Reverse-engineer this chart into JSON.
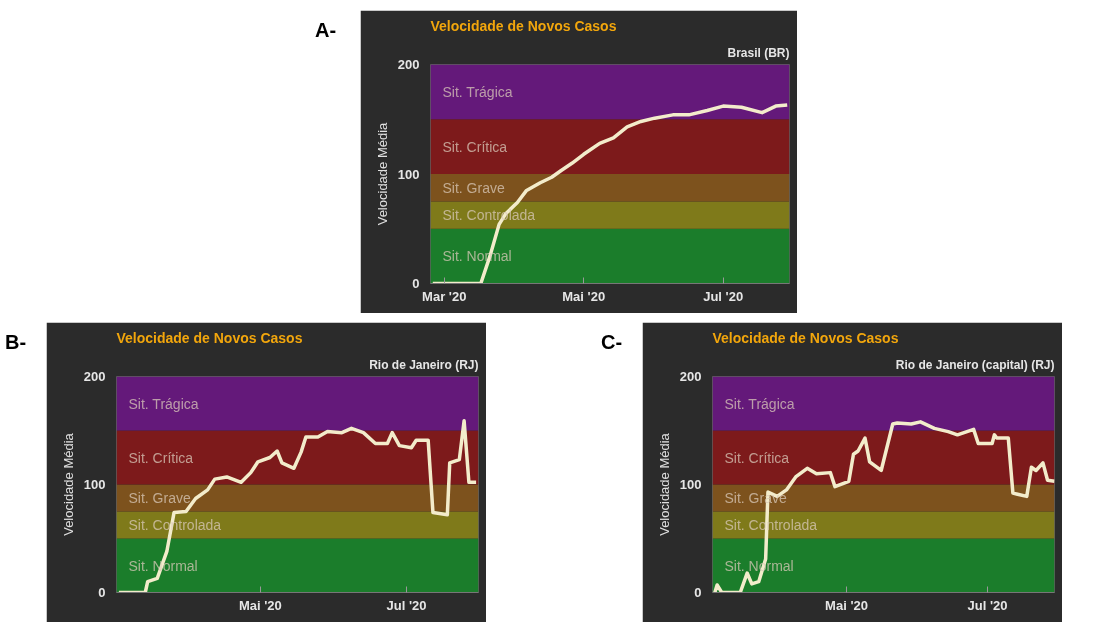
{
  "chart_data": [
    {
      "type": "line",
      "title": "Velocidade de Novos Casos",
      "subtitle": "Brasil (BR)",
      "ylabel": "Velocidade Média",
      "annotations": [
        "A-"
      ],
      "x": [
        "2020-02-25",
        "2020-03-17",
        "2020-03-21",
        "2020-03-25",
        "2020-03-28",
        "2020-04-02",
        "2020-04-06",
        "2020-04-12",
        "2020-04-17",
        "2020-04-21",
        "2020-04-26",
        "2020-05-01",
        "2020-05-08",
        "2020-05-14",
        "2020-05-20",
        "2020-05-26",
        "2020-06-01",
        "2020-06-09",
        "2020-06-16",
        "2020-06-24",
        "2020-07-01",
        "2020-07-09",
        "2020-07-18",
        "2020-07-24",
        "2020-07-29"
      ],
      "series": [
        {
          "color": "#f3eccb",
          "values": [
            0,
            0,
            25,
            54,
            64,
            74,
            85,
            92,
            97,
            103,
            110,
            118,
            128,
            133,
            143,
            148,
            151,
            154,
            154,
            158,
            162,
            161,
            156,
            162,
            163
          ]
        }
      ],
      "xlim": [
        "2020-02-24",
        "2020-07-30"
      ],
      "xticks": [
        {
          "value": "2020-03-01",
          "label": "Mar '20"
        },
        {
          "value": "2020-05-01",
          "label": "Mai '20"
        },
        {
          "value": "2020-07-01",
          "label": "Jul '20"
        }
      ],
      "ylim": [
        0,
        200
      ],
      "yticks": [
        0,
        100,
        200
      ],
      "bands": [
        {
          "axis": "y",
          "from": 0,
          "to": 50,
          "label": "Sit. Normal",
          "color": "#1b7d2b"
        },
        {
          "axis": "y",
          "from": 50,
          "to": 75,
          "label": "Sit. Controlada",
          "color": "#7f7a1a"
        },
        {
          "axis": "y",
          "from": 75,
          "to": 100,
          "label": "Sit. Grave",
          "color": "#7d521d"
        },
        {
          "axis": "y",
          "from": 100,
          "to": 150,
          "label": "Sit. Crítica",
          "color": "#7d1a1b"
        },
        {
          "axis": "y",
          "from": 150,
          "to": 200,
          "label": "Sit. Trágica",
          "color": "#64197a"
        }
      ]
    },
    {
      "type": "line",
      "title": "Velocidade de Novos Casos",
      "subtitle": "Rio de Janeiro (RJ)",
      "ylabel": "Velocidade Média",
      "annotations": [
        "B-"
      ],
      "x": [
        "2020-03-03",
        "2020-03-14",
        "2020-03-15",
        "2020-03-19",
        "2020-03-23",
        "2020-03-26",
        "2020-03-31",
        "2020-04-04",
        "2020-04-09",
        "2020-04-12",
        "2020-04-17",
        "2020-04-23",
        "2020-04-27",
        "2020-04-30",
        "2020-05-05",
        "2020-05-08",
        "2020-05-10",
        "2020-05-15",
        "2020-05-18",
        "2020-05-20",
        "2020-05-25",
        "2020-05-29",
        "2020-06-04",
        "2020-06-08",
        "2020-06-13",
        "2020-06-18",
        "2020-06-23",
        "2020-06-25",
        "2020-06-28",
        "2020-07-03",
        "2020-07-05",
        "2020-07-10",
        "2020-07-12",
        "2020-07-18",
        "2020-07-19",
        "2020-07-23",
        "2020-07-25",
        "2020-07-27",
        "2020-07-30"
      ],
      "series": [
        {
          "color": "#f3eccb",
          "values": [
            0,
            0,
            10,
            13,
            38,
            74,
            75,
            87,
            95,
            105,
            107,
            102,
            111,
            121,
            125,
            131,
            120,
            115,
            130,
            144,
            144,
            149,
            148,
            152,
            148,
            138,
            138,
            148,
            136,
            134,
            141,
            141,
            74,
            72,
            120,
            123,
            159,
            102,
            102
          ]
        }
      ],
      "xlim": [
        "2020-03-02",
        "2020-07-31"
      ],
      "xticks": [
        {
          "value": "2020-05-01",
          "label": "Mai '20"
        },
        {
          "value": "2020-07-01",
          "label": "Jul '20"
        }
      ],
      "ylim": [
        0,
        200
      ],
      "yticks": [
        0,
        100,
        200
      ],
      "bands": [
        {
          "axis": "y",
          "from": 0,
          "to": 50,
          "label": "Sit. Normal",
          "color": "#1b7d2b"
        },
        {
          "axis": "y",
          "from": 50,
          "to": 75,
          "label": "Sit. Controlada",
          "color": "#7f7a1a"
        },
        {
          "axis": "y",
          "from": 75,
          "to": 100,
          "label": "Sit. Grave",
          "color": "#7d521d"
        },
        {
          "axis": "y",
          "from": 100,
          "to": 150,
          "label": "Sit. Crítica",
          "color": "#7d1a1b"
        },
        {
          "axis": "y",
          "from": 150,
          "to": 200,
          "label": "Sit. Trágica",
          "color": "#64197a"
        }
      ]
    },
    {
      "type": "line",
      "title": "Velocidade de Novos Casos",
      "subtitle": "Rio de Janeiro (capital) (RJ)",
      "ylabel": "Velocidade Média",
      "annotations": [
        "C-"
      ],
      "x": [
        "2020-03-05",
        "2020-03-06",
        "2020-03-08",
        "2020-03-16",
        "2020-03-19",
        "2020-03-21",
        "2020-03-24",
        "2020-03-27",
        "2020-03-28",
        "2020-04-01",
        "2020-04-05",
        "2020-04-09",
        "2020-04-14",
        "2020-04-18",
        "2020-04-24",
        "2020-04-26",
        "2020-05-02",
        "2020-05-04",
        "2020-05-06",
        "2020-05-09",
        "2020-05-11",
        "2020-05-16",
        "2020-05-21",
        "2020-05-23",
        "2020-05-29",
        "2020-06-02",
        "2020-06-08",
        "2020-06-14",
        "2020-06-18",
        "2020-06-25",
        "2020-06-27",
        "2020-07-03",
        "2020-07-04",
        "2020-07-05",
        "2020-07-10",
        "2020-07-12",
        "2020-07-18",
        "2020-07-20",
        "2020-07-22",
        "2020-07-25",
        "2020-07-27",
        "2020-07-30"
      ],
      "series": [
        {
          "color": "#f3eccb",
          "values": [
            0,
            7,
            0,
            0,
            18,
            8,
            10,
            31,
            93,
            89,
            95,
            107,
            115,
            110,
            111,
            98,
            103,
            128,
            131,
            143,
            121,
            113,
            156,
            157,
            156,
            158,
            152,
            149,
            146,
            151,
            138,
            138,
            146,
            143,
            143,
            92,
            89,
            116,
            113,
            120,
            104,
            103
          ]
        }
      ],
      "xlim": [
        "2020-03-04",
        "2020-07-30"
      ],
      "xticks": [
        {
          "value": "2020-05-01",
          "label": "Mai '20"
        },
        {
          "value": "2020-07-01",
          "label": "Jul '20"
        }
      ],
      "ylim": [
        0,
        200
      ],
      "yticks": [
        0,
        100,
        200
      ],
      "bands": [
        {
          "axis": "y",
          "from": 0,
          "to": 50,
          "label": "Sit. Normal",
          "color": "#1b7d2b"
        },
        {
          "axis": "y",
          "from": 50,
          "to": 75,
          "label": "Sit. Controlada",
          "color": "#7f7a1a"
        },
        {
          "axis": "y",
          "from": 75,
          "to": 100,
          "label": "Sit. Grave",
          "color": "#7d521d"
        },
        {
          "axis": "y",
          "from": 100,
          "to": 150,
          "label": "Sit. Crítica",
          "color": "#7d1a1b"
        },
        {
          "axis": "y",
          "from": 150,
          "to": 200,
          "label": "Sit. Trágica",
          "color": "#64197a"
        }
      ]
    }
  ]
}
